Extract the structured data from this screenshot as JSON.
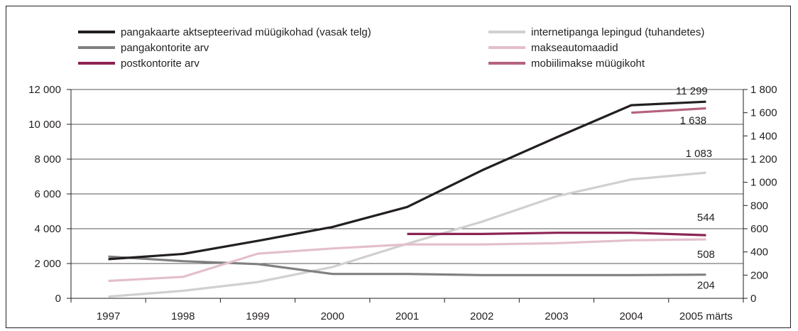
{
  "chart_data": {
    "type": "line",
    "categories": [
      "1997",
      "1998",
      "1999",
      "2000",
      "2001",
      "2002",
      "2003",
      "2004",
      "2005 märts"
    ],
    "y_left": {
      "min": 0,
      "max": 12000,
      "step": 2000,
      "tick_labels": [
        "0",
        "2 000",
        "4 000",
        "6 000",
        "8 000",
        "10 000",
        "12 000"
      ]
    },
    "y_right": {
      "min": 0,
      "max": 1800,
      "step": 200,
      "tick_labels": [
        "0",
        "200",
        "400",
        "600",
        "800",
        "1 000",
        "1 200",
        "1 400",
        "1 600",
        "1 800"
      ]
    },
    "grid": true,
    "legend_position": "top",
    "series": [
      {
        "name": "pangakaarte aktsepteerivad müügikohad (vasak telg)",
        "axis": "left",
        "color": "#231f20",
        "values": [
          2250,
          2550,
          3300,
          4100,
          5250,
          7350,
          9250,
          11100,
          11299
        ]
      },
      {
        "name": "internetipanga lepingud (tuhandetes)",
        "axis": "right",
        "color": "#d0d0cf",
        "values": [
          15,
          65,
          140,
          270,
          470,
          660,
          880,
          1025,
          1083
        ]
      },
      {
        "name": "pangakontorite arv",
        "axis": "right",
        "color": "#808080",
        "values": [
          360,
          320,
          295,
          210,
          210,
          200,
          200,
          200,
          204
        ]
      },
      {
        "name": "makseautomaadid",
        "axis": "right",
        "color": "#e3bfcb",
        "values": [
          150,
          185,
          385,
          430,
          465,
          465,
          475,
          500,
          508
        ]
      },
      {
        "name": "postkontorite arv",
        "axis": "right",
        "color": "#8b2452",
        "values": [
          null,
          null,
          null,
          null,
          555,
          555,
          565,
          565,
          544
        ]
      },
      {
        "name": "mobiilimakse müügikoht",
        "axis": "right",
        "color": "#b5637d",
        "values": [
          null,
          null,
          null,
          null,
          null,
          null,
          null,
          1600,
          1638
        ]
      }
    ],
    "annotations": [
      {
        "text": "11 299",
        "series": 0
      },
      {
        "text": "1 638",
        "series": 5
      },
      {
        "text": "1 083",
        "series": 1
      },
      {
        "text": "544",
        "series": 4
      },
      {
        "text": "508",
        "series": 3
      },
      {
        "text": "204",
        "series": 2
      }
    ]
  }
}
